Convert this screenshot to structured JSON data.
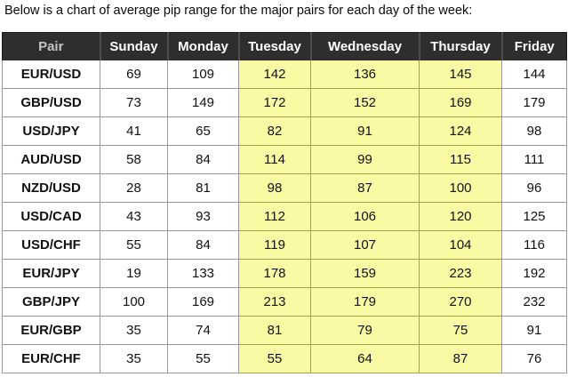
{
  "title": "Below is a chart of average pip range for the major pairs for each day of the week:",
  "colors": {
    "header_background": "#2e2e2e",
    "header_text": "#ffffff",
    "pair_header_text": "#c6c6c6",
    "highlight_yellow": "#fafaa5",
    "grid_line": "#999999",
    "cell_text": "#111111"
  },
  "chart_data": {
    "type": "table",
    "title": "Below is a chart of average pip range for the major pairs for each day of the week:",
    "columns": [
      "Pair",
      "Sunday",
      "Monday",
      "Tuesday",
      "Wednesday",
      "Thursday",
      "Friday"
    ],
    "highlight_column_indexes": [
      3,
      4,
      5
    ],
    "highlighted_columns": [
      "Tuesday",
      "Wednesday",
      "Thursday"
    ],
    "series": [
      {
        "name": "EUR/USD",
        "values": [
          69,
          109,
          142,
          136,
          145,
          144
        ]
      },
      {
        "name": "GBP/USD",
        "values": [
          73,
          149,
          172,
          152,
          169,
          179
        ]
      },
      {
        "name": "USD/JPY",
        "values": [
          41,
          65,
          82,
          91,
          124,
          98
        ]
      },
      {
        "name": "AUD/USD",
        "values": [
          58,
          84,
          114,
          99,
          115,
          111
        ]
      },
      {
        "name": "NZD/USD",
        "values": [
          28,
          81,
          98,
          87,
          100,
          96
        ]
      },
      {
        "name": "USD/CAD",
        "values": [
          43,
          93,
          112,
          106,
          120,
          125
        ]
      },
      {
        "name": "USD/CHF",
        "values": [
          55,
          84,
          119,
          107,
          104,
          116
        ]
      },
      {
        "name": "EUR/JPY",
        "values": [
          19,
          133,
          178,
          159,
          223,
          192
        ]
      },
      {
        "name": "GBP/JPY",
        "values": [
          100,
          169,
          213,
          179,
          270,
          232
        ]
      },
      {
        "name": "EUR/GBP",
        "values": [
          35,
          74,
          81,
          79,
          75,
          91
        ]
      },
      {
        "name": "EUR/CHF",
        "values": [
          35,
          55,
          55,
          64,
          87,
          76
        ]
      }
    ]
  }
}
